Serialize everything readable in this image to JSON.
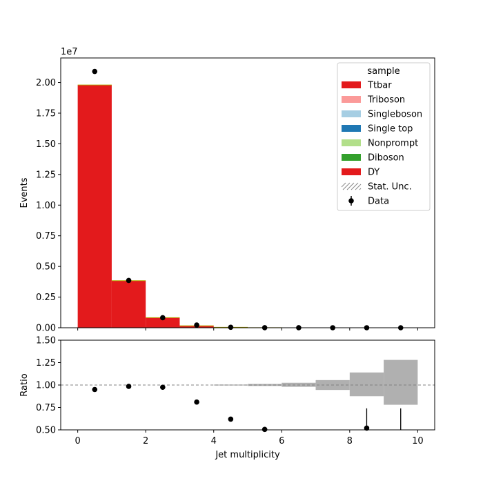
{
  "chart_data": [
    {
      "type": "bar",
      "panel": "main",
      "xlabel": "",
      "ylabel": "Events",
      "y_scale_label": "1e7",
      "xlim": [
        -0.5,
        10.5
      ],
      "ylim": [
        0,
        22000000
      ],
      "yticks": [
        0,
        2500000,
        5000000,
        7500000,
        10000000,
        12500000,
        15000000,
        17500000,
        20000000
      ],
      "ytick_labels": [
        "0.00",
        "0.25",
        "0.50",
        "0.75",
        "1.00",
        "1.25",
        "1.50",
        "1.75",
        "2.00"
      ],
      "xticks": [
        0,
        2,
        4,
        6,
        8,
        10
      ],
      "bin_edges": [
        0,
        1,
        2,
        3,
        4,
        5,
        6,
        7,
        8,
        9,
        10
      ],
      "stack": {
        "name": "DY",
        "color": "#e31a1c",
        "values": [
          19800000,
          3840000,
          820000,
          160000,
          35000,
          7000,
          1500,
          300,
          60,
          10
        ]
      },
      "data_points": {
        "name": "Data",
        "x": [
          0.5,
          1.5,
          2.5,
          3.5,
          4.5,
          5.5,
          6.5,
          7.5,
          8.5,
          9.5
        ],
        "y": [
          20900000,
          3860000,
          820000,
          220000,
          40000,
          6000,
          1000,
          200,
          30,
          5
        ]
      },
      "legend": {
        "title": "sample",
        "placement": "top-right",
        "entries": [
          {
            "label": "Ttbar",
            "color": "#e31a1c",
            "kind": "patch"
          },
          {
            "label": "Triboson",
            "color": "#fb9a99",
            "kind": "patch"
          },
          {
            "label": "Singleboson",
            "color": "#a6cee3",
            "kind": "patch"
          },
          {
            "label": "Single top",
            "color": "#1f78b4",
            "kind": "patch"
          },
          {
            "label": "Nonprompt",
            "color": "#b2df8a",
            "kind": "patch"
          },
          {
            "label": "Diboson",
            "color": "#33a02c",
            "kind": "patch"
          },
          {
            "label": "DY",
            "color": "#e31a1c",
            "kind": "patch"
          },
          {
            "label": "Stat. Unc.",
            "color": "#888888",
            "kind": "hatch"
          },
          {
            "label": "Data",
            "color": "#000000",
            "kind": "errorbar"
          }
        ]
      }
    },
    {
      "type": "scatter",
      "panel": "ratio",
      "xlabel": "Jet multiplicity",
      "ylabel": "Ratio",
      "xlim": [
        -0.5,
        10.5
      ],
      "ylim": [
        0.5,
        1.5
      ],
      "yticks": [
        0.5,
        0.75,
        1.0,
        1.25,
        1.5
      ],
      "ytick_labels": [
        "0.50",
        "0.75",
        "1.00",
        "1.25",
        "1.50"
      ],
      "xticks": [
        0,
        2,
        4,
        6,
        8,
        10
      ],
      "xtick_labels": [
        "0",
        "2",
        "4",
        "6",
        "8",
        "10"
      ],
      "reference_line": 1.0,
      "points": {
        "x": [
          0.5,
          1.5,
          2.5,
          3.5,
          4.5,
          5.5,
          8.5
        ],
        "y": [
          0.95,
          0.985,
          0.975,
          0.81,
          0.62,
          0.505,
          0.52
        ]
      },
      "errorbars": [
        {
          "x": 8.5,
          "low": 0.5,
          "high": 0.74
        },
        {
          "x": 9.5,
          "low": 0.5,
          "high": 0.74
        }
      ],
      "uncertainty_band": {
        "color": "#b0b0b0",
        "bins": [
          {
            "x0": 4,
            "x1": 5,
            "low": 0.995,
            "high": 1.005
          },
          {
            "x0": 5,
            "x1": 6,
            "low": 0.99,
            "high": 1.012
          },
          {
            "x0": 6,
            "x1": 7,
            "low": 0.98,
            "high": 1.025
          },
          {
            "x0": 7,
            "x1": 8,
            "low": 0.945,
            "high": 1.055
          },
          {
            "x0": 8,
            "x1": 9,
            "low": 0.875,
            "high": 1.14
          },
          {
            "x0": 9,
            "x1": 10,
            "low": 0.78,
            "high": 1.28
          }
        ]
      }
    }
  ]
}
